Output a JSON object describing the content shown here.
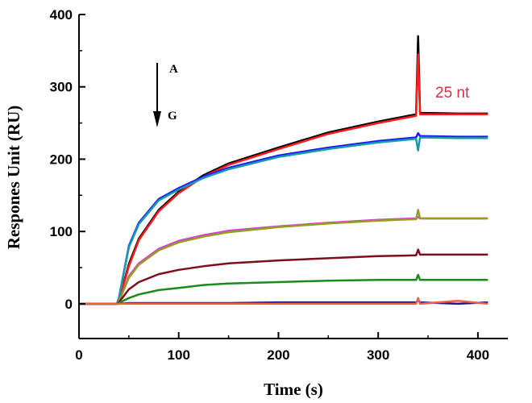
{
  "chart_data": {
    "type": "line",
    "title": "",
    "xlabel": "Time (s)",
    "ylabel": "Respones Unit (RU)",
    "xlim": [
      0,
      430
    ],
    "ylim": [
      -48,
      400
    ],
    "xticks": [
      0,
      100,
      200,
      300,
      400
    ],
    "yticks": [
      0,
      100,
      200,
      300,
      400
    ],
    "grid": false,
    "annotations": {
      "top_label": "A",
      "bottom_label": "G",
      "size_label": "25 nt",
      "size_label_color": "#d0324a"
    },
    "x": [
      0,
      38,
      40,
      50,
      60,
      80,
      100,
      125,
      150,
      200,
      250,
      300,
      338,
      340,
      342,
      380,
      410
    ],
    "series": [
      {
        "name": "black",
        "color": "#000000",
        "values": [
          0,
          0,
          4,
          55,
          90,
          130,
          155,
          178,
          194,
          216,
          237,
          252,
          262,
          370,
          264,
          263,
          263
        ]
      },
      {
        "name": "red",
        "color": "#ff1a1a",
        "values": [
          0,
          0,
          4,
          52,
          88,
          128,
          153,
          176,
          192,
          214,
          235,
          250,
          260,
          345,
          262,
          262,
          262
        ]
      },
      {
        "name": "blue",
        "color": "#1a1aff",
        "values": [
          0,
          0,
          8,
          80,
          112,
          145,
          160,
          176,
          188,
          205,
          216,
          225,
          230,
          236,
          232,
          231,
          231
        ]
      },
      {
        "name": "cyan",
        "color": "#1a9aa8",
        "values": [
          0,
          0,
          8,
          78,
          110,
          143,
          158,
          174,
          186,
          203,
          214,
          223,
          228,
          212,
          230,
          229,
          229
        ]
      },
      {
        "name": "magenta",
        "color": "#d040d0",
        "values": [
          0,
          0,
          3,
          38,
          56,
          76,
          87,
          95,
          101,
          107,
          112,
          116,
          118,
          120,
          118,
          118,
          118
        ]
      },
      {
        "name": "olive",
        "color": "#9a9a20",
        "values": [
          0,
          0,
          3,
          36,
          54,
          74,
          85,
          93,
          99,
          106,
          111,
          115,
          117,
          130,
          118,
          118,
          118
        ]
      },
      {
        "name": "darkred",
        "color": "#7a0f1a",
        "values": [
          0,
          0,
          2,
          20,
          30,
          41,
          47,
          52,
          56,
          60,
          63,
          66,
          67,
          75,
          68,
          68,
          68
        ]
      },
      {
        "name": "green",
        "color": "#1a8a1a",
        "values": [
          0,
          0,
          1,
          8,
          13,
          19,
          22,
          26,
          28,
          30,
          32,
          33,
          33,
          40,
          33,
          33,
          33
        ]
      },
      {
        "name": "navy",
        "color": "#1a1a80",
        "values": [
          0,
          0,
          0,
          1,
          1,
          1,
          1,
          1,
          1,
          2,
          2,
          2,
          2,
          5,
          2,
          0,
          2
        ]
      },
      {
        "name": "orange",
        "color": "#ee6040",
        "values": [
          0,
          0,
          0,
          0,
          0,
          0,
          0,
          0,
          0,
          0,
          0,
          0,
          0,
          8,
          0,
          4,
          0
        ]
      }
    ]
  }
}
